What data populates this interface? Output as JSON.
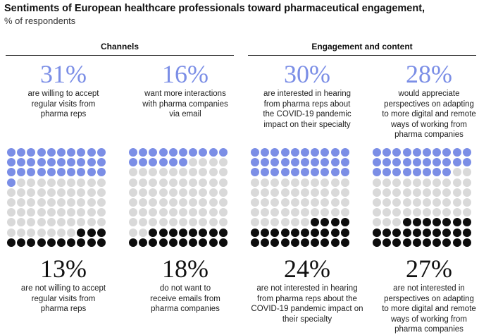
{
  "title": "Sentiments of European healthcare professionals toward pharmaceutical engagement,",
  "subtitle": "% of respondents",
  "groups": [
    {
      "label": "Channels"
    },
    {
      "label": "Engagement and content"
    }
  ],
  "colors": {
    "positive": "#7b8ee6",
    "neutral": "#d9d9d9",
    "negative": "#0d0d0d"
  },
  "chart_data": {
    "type": "dot-matrix",
    "grid": {
      "columns": 10,
      "rows": 10
    },
    "panels": [
      {
        "group": "Channels",
        "positive_value": 31,
        "positive_label": "31%",
        "positive_text": "are willing to accept regular visits from pharma reps",
        "negative_value": 13,
        "negative_label": "13%",
        "negative_text": "are not willing to accept regular visits from pharma reps"
      },
      {
        "group": "Channels",
        "positive_value": 16,
        "positive_label": "16%",
        "positive_text": "want more interactions with pharma companies via email",
        "negative_value": 18,
        "negative_label": "18%",
        "negative_text": "do not want to receive emails from pharma companies"
      },
      {
        "group": "Engagement and content",
        "positive_value": 30,
        "positive_label": "30%",
        "positive_text": "are interested in hearing from pharma reps about the COVID-19 pandemic impact on their specialty",
        "negative_value": 24,
        "negative_label": "24%",
        "negative_text": "are not interested in hearing from pharma reps about the COVID-19 pandemic impact on their specialty"
      },
      {
        "group": "Engagement and content",
        "positive_value": 28,
        "positive_label": "28%",
        "positive_text": "would appreciate perspectives on adapting to more digital and remote ways of working from pharma companies",
        "negative_value": 27,
        "negative_label": "27%",
        "negative_text": "are not interested in perspectives on adapting to more digital and remote ways of working from pharma companies"
      }
    ]
  }
}
